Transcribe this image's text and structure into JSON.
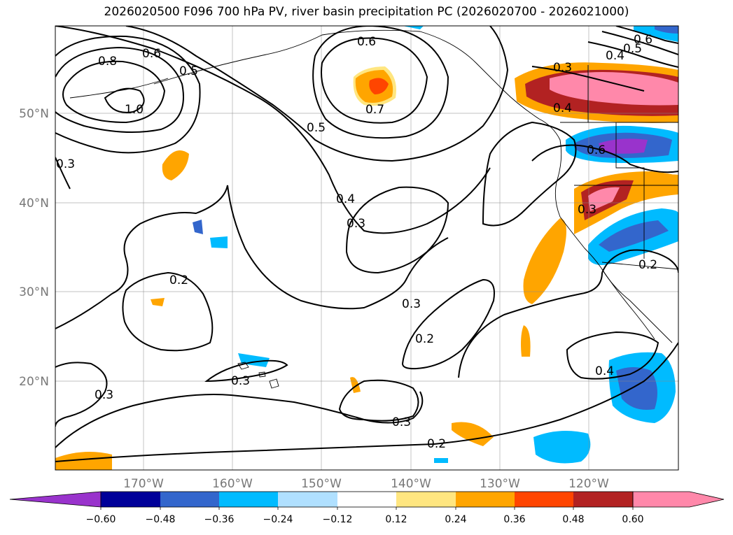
{
  "title": "2026020500 F096 700 hPa PV, river basin precipitation PC (2026020700 - 2026021000)",
  "lon_ticks": [
    "170°W",
    "160°W",
    "150°W",
    "140°W",
    "130°W",
    "120°W"
  ],
  "lat_ticks": [
    "50°N",
    "40°N",
    "30°N",
    "20°N"
  ],
  "colorbar": {
    "tick_labels": [
      "−0.60",
      "−0.48",
      "−0.36",
      "−0.24",
      "−0.12",
      "0.12",
      "0.24",
      "0.36",
      "0.48",
      "0.60"
    ],
    "colors": [
      "#9933cc",
      "#000099",
      "#3366cc",
      "#00bbff",
      "#b0e0ff",
      "#ffffff",
      "#ffe680",
      "#ffa500",
      "#ff4500",
      "#b22222",
      "#ff88aa"
    ]
  },
  "contour_labels": [
    "0.8",
    "0.6",
    "0.5",
    "1.0",
    "0.3",
    "0.6",
    "0.7",
    "0.5",
    "0.4",
    "0.3",
    "0.2",
    "0.3",
    "0.2",
    "0.3",
    "0.3",
    "0.3",
    "0.2",
    "0.3",
    "0.4",
    "0.5",
    "0.6",
    "0.4",
    "0.4",
    "0.6",
    "0.3",
    "0.2"
  ]
}
